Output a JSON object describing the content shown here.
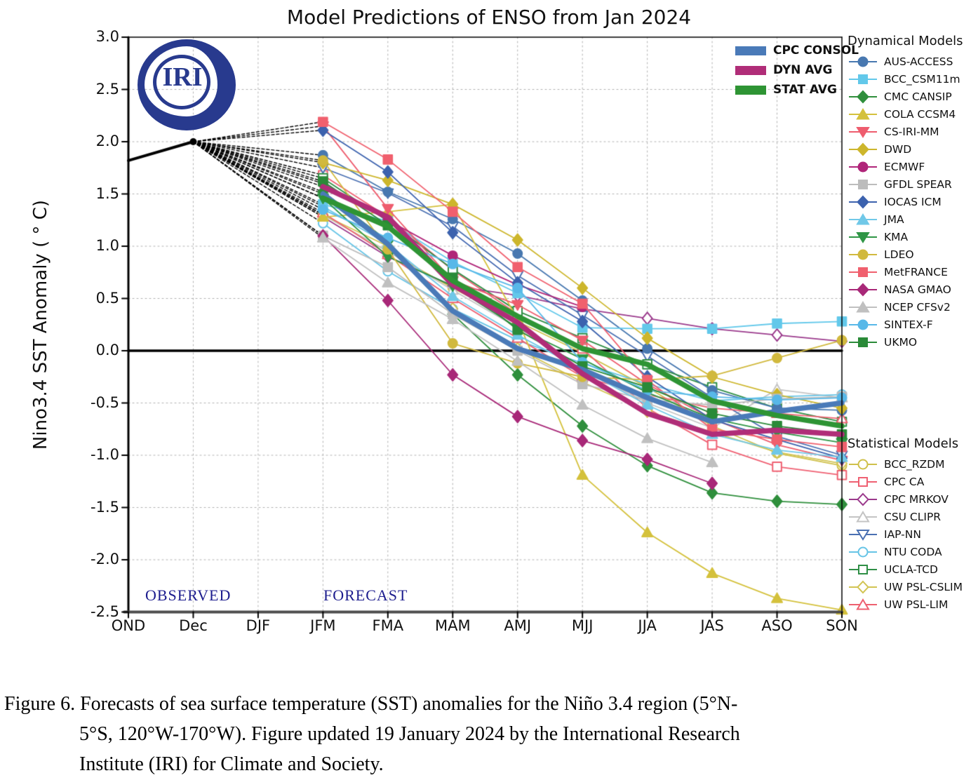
{
  "figure": {
    "logo_text": "IRI",
    "observed_label": "OBSERVED",
    "forecast_label": "FORECAST",
    "dynamical_header": "Dynamical Models",
    "statistical_header": "Statistical Models",
    "caption_lines": {
      "line1": "Figure  6. Forecasts of sea surface  temperature  (SST) anomalies  for the Niño 3.4 region  (5°N-",
      "line2": "5°S, 120°W-170°W). Figure  updated 19 January  2024 by the  International  Research",
      "line3": "Institute  (IRI) for Climate  and Society."
    }
  },
  "chart_data": {
    "type": "line",
    "title": "Model Predictions of ENSO from Jan 2024",
    "ylabel": "Nino3.4 SST Anomaly ( ° C)",
    "x_categories": [
      "OND",
      "Dec",
      "DJF",
      "JFM",
      "FMA",
      "MAM",
      "AMJ",
      "MJJ",
      "JJA",
      "JAS",
      "ASO",
      "SON"
    ],
    "forecast_categories": [
      "JFM",
      "FMA",
      "MAM",
      "AMJ",
      "MJJ",
      "JJA",
      "JAS",
      "ASO",
      "SON"
    ],
    "ylim": [
      -2.5,
      3.0
    ],
    "ytick_step": 0.5,
    "grid": true,
    "zero_line_value": 0.0,
    "legend_position": "right",
    "observed": {
      "categories": [
        "OND",
        "Dec"
      ],
      "values": [
        1.82,
        2.0
      ],
      "color": "#000000"
    },
    "averages": [
      {
        "name": "CPC CONSOL",
        "color": "#4a7ab8",
        "values": [
          1.5,
          1.02,
          0.38,
          0.02,
          -0.18,
          -0.45,
          -0.68,
          -0.58,
          -0.5
        ]
      },
      {
        "name": "DYN AVG",
        "color": "#b02d78",
        "values": [
          1.57,
          1.28,
          0.63,
          0.27,
          -0.22,
          -0.6,
          -0.8,
          -0.76,
          -0.8
        ]
      },
      {
        "name": "STAT AVG",
        "color": "#2e9434",
        "values": [
          1.46,
          1.19,
          0.67,
          0.33,
          0.02,
          -0.13,
          -0.48,
          -0.62,
          -0.72
        ]
      }
    ],
    "dynamical_models": [
      {
        "name": "AUS-ACCESS",
        "color": "#4878b0",
        "marker": "circle",
        "filled": true,
        "values": [
          1.87,
          1.52,
          1.26,
          0.93,
          0.48,
          0.02,
          -0.38,
          -0.55,
          -0.57
        ]
      },
      {
        "name": "BCC_CSM11m",
        "color": "#62c8ea",
        "marker": "square",
        "filled": true,
        "values": [
          1.4,
          1.24,
          0.85,
          0.55,
          0.22,
          0.21,
          0.21,
          0.26,
          0.28
        ]
      },
      {
        "name": "CMC CANSIP",
        "color": "#2f8f3c",
        "marker": "diamond",
        "filled": true,
        "values": [
          1.52,
          1.05,
          0.35,
          -0.23,
          -0.72,
          -1.1,
          -1.36,
          -1.44,
          -1.47
        ]
      },
      {
        "name": "COLA CCSM4",
        "color": "#d4c13c",
        "marker": "triangle-up",
        "filled": true,
        "values": [
          1.28,
          1.33,
          1.4,
          0.3,
          -1.19,
          -1.74,
          -2.13,
          -2.37,
          -2.48
        ]
      },
      {
        "name": "CS-IRI-MM",
        "color": "#ee5d6e",
        "marker": "triangle-down",
        "filled": true,
        "values": [
          2.15,
          1.36,
          0.67,
          0.44,
          0.1,
          -0.32,
          -0.65,
          -0.9,
          -1.05
        ]
      },
      {
        "name": "DWD",
        "color": "#cdb62c",
        "marker": "diamond",
        "filled": true,
        "values": [
          1.8,
          1.63,
          1.4,
          1.06,
          0.6,
          0.12,
          -0.25,
          -0.42,
          -0.55
        ]
      },
      {
        "name": "ECMWF",
        "color": "#b02579",
        "marker": "circle",
        "filled": true,
        "values": [
          1.6,
          1.25,
          0.91,
          0.63,
          0.42,
          null,
          null,
          null,
          null
        ]
      },
      {
        "name": "GFDL SPEAR",
        "color": "#bcbcbc",
        "marker": "square",
        "filled": true,
        "values": [
          1.1,
          0.8,
          0.35,
          0.0,
          -0.32,
          -0.47,
          -0.52,
          -0.46,
          -0.44
        ]
      },
      {
        "name": "IOCAS ICM",
        "color": "#3c62ae",
        "marker": "diamond",
        "filled": true,
        "values": [
          2.11,
          1.71,
          1.13,
          0.65,
          0.28,
          -0.25,
          -0.66,
          -0.85,
          -1.03
        ]
      },
      {
        "name": "JMA",
        "color": "#70c8e8",
        "marker": "triangle-up",
        "filled": true,
        "values": [
          1.38,
          1.02,
          0.52,
          0.15,
          -0.18,
          -0.52,
          -0.8,
          -0.95,
          -1.02
        ]
      },
      {
        "name": "KMA",
        "color": "#2f9646",
        "marker": "triangle-down",
        "filled": true,
        "values": [
          1.46,
          0.9,
          0.62,
          0.22,
          -0.08,
          -0.4,
          -0.65,
          -0.78,
          -0.88
        ]
      },
      {
        "name": "LDEO",
        "color": "#d1b93e",
        "marker": "circle",
        "filled": true,
        "values": [
          1.82,
          0.97,
          0.07,
          -0.12,
          -0.25,
          -0.28,
          -0.24,
          -0.07,
          0.1
        ]
      },
      {
        "name": "MetFRANCE",
        "color": "#f0606e",
        "marker": "square",
        "filled": true,
        "values": [
          2.19,
          1.83,
          1.33,
          0.8,
          0.45,
          -0.28,
          -0.75,
          -0.85,
          -0.92
        ]
      },
      {
        "name": "NASA GMAO",
        "color": "#a82878",
        "marker": "diamond",
        "filled": true,
        "values": [
          1.1,
          0.48,
          -0.23,
          -0.63,
          -0.86,
          -1.04,
          -1.27,
          null,
          null
        ]
      },
      {
        "name": "NCEP CFSv2",
        "color": "#c0c0c0",
        "marker": "triangle-up",
        "filled": true,
        "values": [
          1.08,
          0.65,
          0.3,
          -0.1,
          -0.52,
          -0.84,
          -1.07,
          null,
          null
        ]
      },
      {
        "name": "SINTEX-F",
        "color": "#58b8e8",
        "marker": "circle",
        "filled": true,
        "values": [
          1.35,
          1.08,
          0.83,
          0.6,
          -0.11,
          -0.38,
          -0.44,
          -0.47,
          -0.45
        ]
      },
      {
        "name": "UKMO",
        "color": "#2a8a38",
        "marker": "square",
        "filled": true,
        "values": [
          1.62,
          1.2,
          0.7,
          0.2,
          -0.15,
          -0.35,
          -0.6,
          -0.72,
          -0.8
        ]
      }
    ],
    "statistical_models": [
      {
        "name": "BCC_RZDM",
        "color": "#cfc04a",
        "marker": "circle",
        "filled": false,
        "values": [
          1.3,
          0.95,
          0.6,
          0.28,
          -0.02,
          -0.35,
          -0.72,
          -0.98,
          -1.1
        ]
      },
      {
        "name": "CPC CA",
        "color": "#ef6072",
        "marker": "square",
        "filled": false,
        "values": [
          1.68,
          1.28,
          0.77,
          0.35,
          0.02,
          -0.55,
          -0.9,
          -1.11,
          -1.19
        ]
      },
      {
        "name": "CPC MRKOV",
        "color": "#9b3a8c",
        "marker": "diamond",
        "filled": false,
        "values": [
          1.28,
          0.9,
          0.62,
          0.53,
          0.4,
          0.31,
          0.21,
          0.15,
          0.09
        ]
      },
      {
        "name": "CSU CLIPR",
        "color": "#c4c4c4",
        "marker": "triangle-up",
        "filled": false,
        "values": [
          1.3,
          0.95,
          0.58,
          0.22,
          -0.18,
          -0.5,
          -0.74,
          -0.37,
          -0.45
        ]
      },
      {
        "name": "IAP-NN",
        "color": "#4a70b2",
        "marker": "triangle-down",
        "filled": false,
        "values": [
          1.75,
          1.51,
          1.19,
          0.72,
          0.34,
          -0.05,
          -0.45,
          -0.82,
          -1.0
        ]
      },
      {
        "name": "NTU CODA",
        "color": "#66c4e6",
        "marker": "circle",
        "filled": false,
        "values": [
          1.22,
          0.76,
          0.4,
          0.1,
          -0.12,
          -0.32,
          -0.48,
          -0.44,
          -0.42
        ]
      },
      {
        "name": "UCLA-TCD",
        "color": "#2f8f46",
        "marker": "square",
        "filled": false,
        "values": [
          1.65,
          1.24,
          0.78,
          0.38,
          0.12,
          -0.13,
          -0.35,
          -0.55,
          -0.68
        ]
      },
      {
        "name": "UW PSL-CSLIM",
        "color": "#d2c452",
        "marker": "diamond",
        "filled": false,
        "values": [
          1.3,
          1.0,
          0.4,
          0.02,
          -0.3,
          -0.58,
          -0.78,
          -0.97,
          -1.08
        ]
      },
      {
        "name": "UW PSL-LIM",
        "color": "#ee6070",
        "marker": "triangle-up",
        "filled": false,
        "values": [
          1.32,
          0.92,
          0.5,
          0.12,
          -0.25,
          -0.42,
          -0.55,
          -0.6,
          -0.65
        ]
      }
    ]
  }
}
